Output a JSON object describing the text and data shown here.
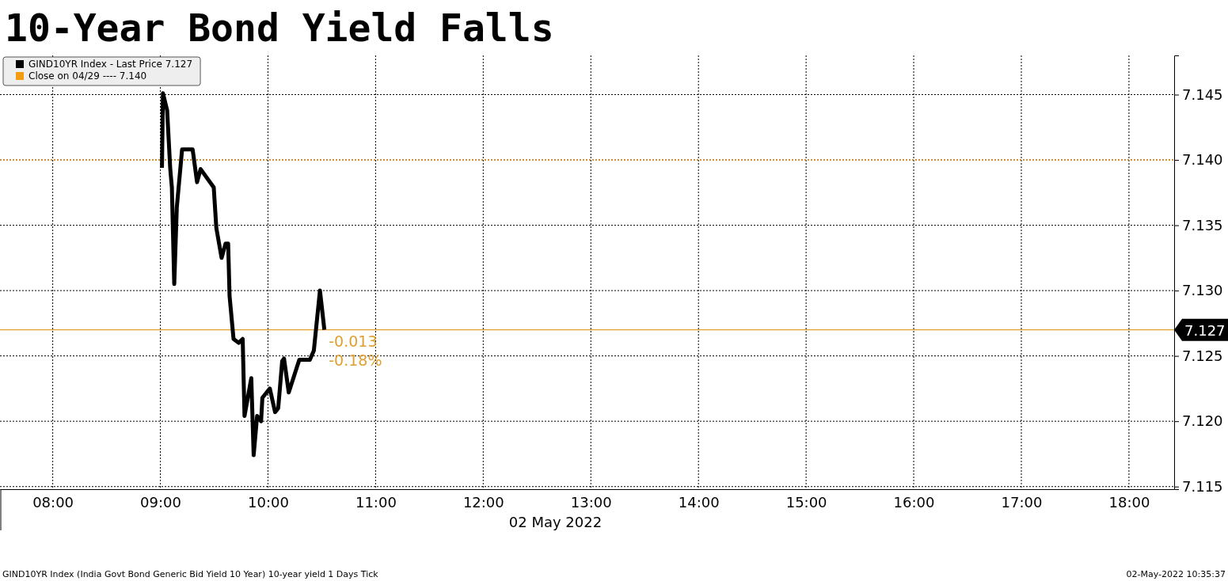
{
  "chart_data": {
    "type": "line",
    "title": "10-Year Bond Yield Falls",
    "xlabel": "02 May 2022",
    "x": [
      9.015,
      9.024,
      9.063,
      9.092,
      9.107,
      9.129,
      9.153,
      9.202,
      9.3,
      9.341,
      9.374,
      9.496,
      9.52,
      9.569,
      9.606,
      9.63,
      9.643,
      9.68,
      9.728,
      9.765,
      9.782,
      9.845,
      9.867,
      9.899,
      9.936,
      9.948,
      10.017,
      10.066,
      10.095,
      10.132,
      10.149,
      10.193,
      10.291,
      10.389,
      10.426,
      10.483,
      10.524
    ],
    "series": [
      {
        "name": "GIND10YR Index - Last Price 7.127",
        "color": "#000000",
        "values": [
          7.1394,
          7.1451,
          7.1438,
          7.1393,
          7.1379,
          7.1305,
          7.1364,
          7.1408,
          7.1408,
          7.1383,
          7.1393,
          7.1379,
          7.1348,
          7.1325,
          7.1336,
          7.1336,
          7.1296,
          7.1263,
          7.126,
          7.1263,
          7.1204,
          7.1233,
          7.1174,
          7.1204,
          7.12,
          7.1218,
          7.1225,
          7.1207,
          7.121,
          7.1246,
          7.1248,
          7.1222,
          7.1247,
          7.1247,
          7.1254,
          7.13,
          7.127
        ]
      }
    ],
    "xlim": [
      7.51,
      18.42
    ],
    "xticks": [
      {
        "value": 8,
        "label": "08:00"
      },
      {
        "value": 9,
        "label": "09:00"
      },
      {
        "value": 10,
        "label": "10:00"
      },
      {
        "value": 11,
        "label": "11:00"
      },
      {
        "value": 12,
        "label": "12:00"
      },
      {
        "value": 13,
        "label": "13:00"
      },
      {
        "value": 14,
        "label": "14:00"
      },
      {
        "value": 15,
        "label": "15:00"
      },
      {
        "value": 16,
        "label": "16:00"
      },
      {
        "value": 17,
        "label": "17:00"
      },
      {
        "value": 18,
        "label": "18:00"
      }
    ],
    "ylim": [
      7.1148,
      7.148
    ],
    "yticks": [
      {
        "value": 7.115,
        "label": "7.115"
      },
      {
        "value": 7.12,
        "label": "7.120"
      },
      {
        "value": 7.125,
        "label": "7.125"
      },
      {
        "value": 7.13,
        "label": "7.130"
      },
      {
        "value": 7.135,
        "label": "7.135"
      },
      {
        "value": 7.14,
        "label": "7.140"
      },
      {
        "value": 7.145,
        "label": "7.145"
      }
    ],
    "ref_lines": [
      {
        "axis": "y",
        "value": 7.14,
        "label": "Close on 04/29 ---- 7.140",
        "color": "#f39c12",
        "line_style": "dotted"
      },
      {
        "axis": "y",
        "value": 7.127,
        "label": "7.127",
        "color": "#e0a030",
        "line_style": "solid"
      }
    ],
    "annotations": [
      {
        "text": "-0.013",
        "x": 10.55,
        "y": 7.127
      },
      {
        "text": "-0.18%",
        "x": 10.55,
        "y": 7.127
      },
      "GIND10YR Index (India Govt Bond Generic Bid Yield 10 Year) 10-year yield 1 Days  Tick",
      "02-May-2022 10:35:37"
    ],
    "grid": true,
    "legend": "top left",
    "marker": "none",
    "line_style": "solid"
  }
}
